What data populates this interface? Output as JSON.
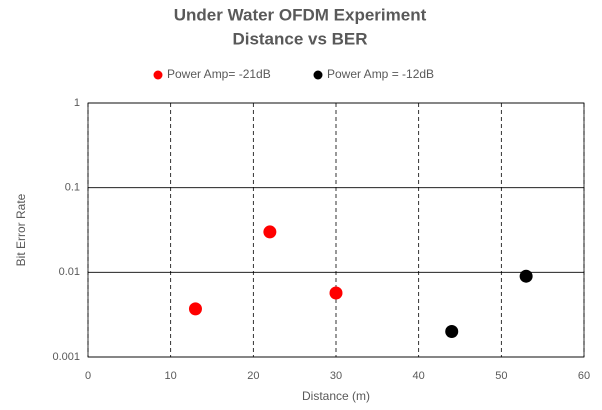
{
  "chart_data": {
    "type": "scatter",
    "title": "Under Water OFDM Experiment",
    "subtitle": "Distance vs BER",
    "xlabel": "Distance (m)",
    "ylabel": "Bit Error Rate",
    "xlim": [
      0,
      60
    ],
    "xticks": [
      0,
      10,
      20,
      30,
      40,
      50,
      60
    ],
    "ylim": [
      0.001,
      1
    ],
    "yticks": [
      0.001,
      0.01,
      0.1,
      1
    ],
    "ylog": true,
    "grid": true,
    "legend": "top",
    "series": [
      {
        "name": "Power Amp= -21dB",
        "color": "#ff0000",
        "x": [
          13,
          22,
          30
        ],
        "values": [
          0.0037,
          0.03,
          0.0057
        ]
      },
      {
        "name": "Power Amp = -12dB",
        "color": "#000000",
        "x": [
          44,
          53
        ],
        "values": [
          0.002,
          0.009
        ]
      }
    ]
  }
}
